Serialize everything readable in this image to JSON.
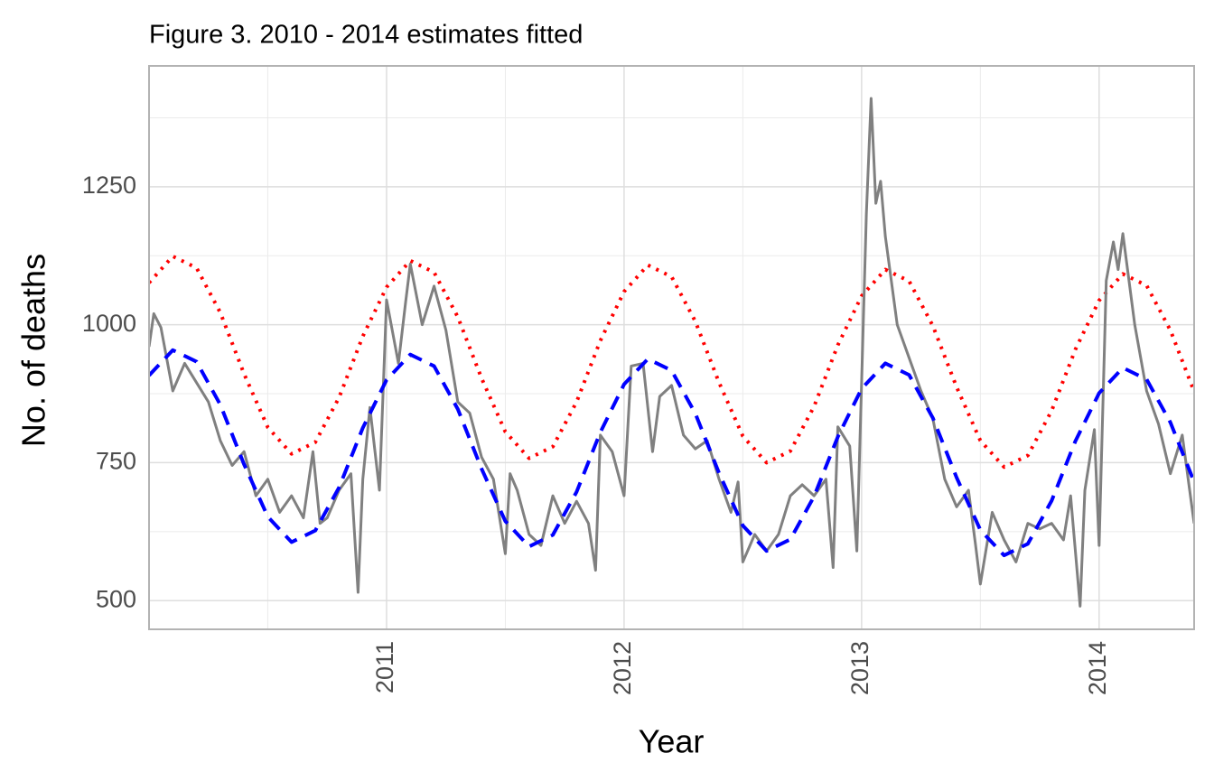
{
  "chart_data": {
    "type": "line",
    "title": "Figure 3. 2010 - 2014 estimates fitted",
    "xlabel": "Year",
    "ylabel": "No. of deaths",
    "xlim": [
      2010.0,
      2014.4
    ],
    "ylim": [
      448,
      1469
    ],
    "xticks": [
      2011,
      2012,
      2013,
      2014
    ],
    "yticks": [
      500,
      750,
      1000,
      1250
    ],
    "grid": true,
    "series": [
      {
        "color": "#ff0000",
        "style": "dotted",
        "x": [
          2010,
          2010.1,
          2010.2,
          2010.3,
          2010.4,
          2010.5,
          2010.6,
          2010.7,
          2010.8,
          2010.9,
          2011,
          2011.1,
          2011.2,
          2011.3,
          2011.4,
          2011.5,
          2011.6,
          2011.7,
          2011.8,
          2011.9,
          2012,
          2012.1,
          2012.2,
          2012.3,
          2012.4,
          2012.5,
          2012.6,
          2012.7,
          2012.8,
          2012.9,
          2013,
          2013.1,
          2013.2,
          2013.3,
          2013.4,
          2013.5,
          2013.6,
          2013.7,
          2013.8,
          2013.9,
          2014,
          2014.1,
          2014.2,
          2014.3,
          2014.4
        ],
        "values": [
          1076,
          1124,
          1103,
          1022,
          911,
          814,
          766,
          787,
          868,
          979,
          1068,
          1116,
          1095,
          1014,
          903,
          806,
          758,
          779,
          860,
          971,
          1060,
          1108,
          1087,
          1006,
          895,
          798,
          750,
          771,
          852,
          963,
          1052,
          1100,
          1079,
          998,
          887,
          790,
          742,
          763,
          844,
          955,
          1044,
          1092,
          1071,
          990,
          879
        ]
      },
      {
        "color": "#808080",
        "style": "solid",
        "x": [
          2010,
          2010.02,
          2010.05,
          2010.1,
          2010.15,
          2010.2,
          2010.25,
          2010.3,
          2010.35,
          2010.4,
          2010.45,
          2010.5,
          2010.55,
          2010.6,
          2010.65,
          2010.69,
          2010.72,
          2010.75,
          2010.8,
          2010.85,
          2010.88,
          2010.9,
          2010.93,
          2010.97,
          2011,
          2011.05,
          2011.08,
          2011.1,
          2011.15,
          2011.2,
          2011.25,
          2011.3,
          2011.35,
          2011.4,
          2011.45,
          2011.5,
          2011.52,
          2011.55,
          2011.6,
          2011.65,
          2011.7,
          2011.75,
          2011.8,
          2011.85,
          2011.88,
          2011.9,
          2011.95,
          2012,
          2012.03,
          2012.08,
          2012.12,
          2012.15,
          2012.2,
          2012.25,
          2012.3,
          2012.35,
          2012.4,
          2012.45,
          2012.48,
          2012.5,
          2012.55,
          2012.6,
          2012.65,
          2012.7,
          2012.75,
          2012.8,
          2012.85,
          2012.88,
          2012.9,
          2012.95,
          2012.98,
          2013.02,
          2013.04,
          2013.06,
          2013.08,
          2013.1,
          2013.15,
          2013.2,
          2013.25,
          2013.3,
          2013.35,
          2013.4,
          2013.45,
          2013.48,
          2013.5,
          2013.55,
          2013.6,
          2013.65,
          2013.7,
          2013.75,
          2013.8,
          2013.85,
          2013.88,
          2013.92,
          2013.94,
          2013.98,
          2014,
          2014.03,
          2014.06,
          2014.08,
          2014.1,
          2014.15,
          2014.2,
          2014.25,
          2014.3,
          2014.35,
          2014.4
        ],
        "values": [
          960,
          1020,
          995,
          880,
          930,
          895,
          860,
          790,
          745,
          770,
          690,
          720,
          660,
          690,
          650,
          770,
          640,
          650,
          700,
          730,
          515,
          720,
          850,
          700,
          1045,
          930,
          1040,
          1110,
          1000,
          1070,
          990,
          860,
          840,
          760,
          720,
          585,
          730,
          700,
          620,
          600,
          690,
          640,
          680,
          640,
          555,
          800,
          770,
          690,
          925,
          930,
          770,
          870,
          890,
          800,
          775,
          790,
          720,
          660,
          715,
          570,
          620,
          590,
          620,
          690,
          710,
          690,
          720,
          560,
          815,
          780,
          590,
          1200,
          1410,
          1220,
          1260,
          1160,
          1000,
          940,
          880,
          830,
          720,
          670,
          700,
          600,
          530,
          660,
          610,
          570,
          640,
          630,
          640,
          610,
          690,
          490,
          700,
          810,
          600,
          1080,
          1150,
          1100,
          1165,
          1000,
          880,
          820,
          730,
          800,
          640
        ]
      },
      {
        "color": "#0000ff",
        "style": "dashed",
        "x": [
          2010,
          2010.1,
          2010.2,
          2010.3,
          2010.4,
          2010.5,
          2010.6,
          2010.7,
          2010.8,
          2010.9,
          2011,
          2011.1,
          2011.2,
          2011.3,
          2011.4,
          2011.5,
          2011.6,
          2011.7,
          2011.8,
          2011.9,
          2012,
          2012.1,
          2012.2,
          2012.3,
          2012.4,
          2012.5,
          2012.6,
          2012.7,
          2012.8,
          2012.9,
          2013,
          2013.1,
          2013.2,
          2013.3,
          2013.4,
          2013.5,
          2013.6,
          2013.7,
          2013.8,
          2013.9,
          2014,
          2014.1,
          2014.2,
          2014.3,
          2014.4
        ],
        "values": [
          908,
          954,
          933,
          855,
          747,
          652,
          606,
          627,
          705,
          813,
          900,
          946,
          925,
          847,
          739,
          644,
          598,
          619,
          697,
          805,
          892,
          938,
          917,
          839,
          731,
          636,
          590,
          611,
          689,
          797,
          884,
          930,
          909,
          831,
          723,
          628,
          582,
          603,
          681,
          789,
          876,
          922,
          901,
          823,
          715
        ]
      }
    ]
  }
}
